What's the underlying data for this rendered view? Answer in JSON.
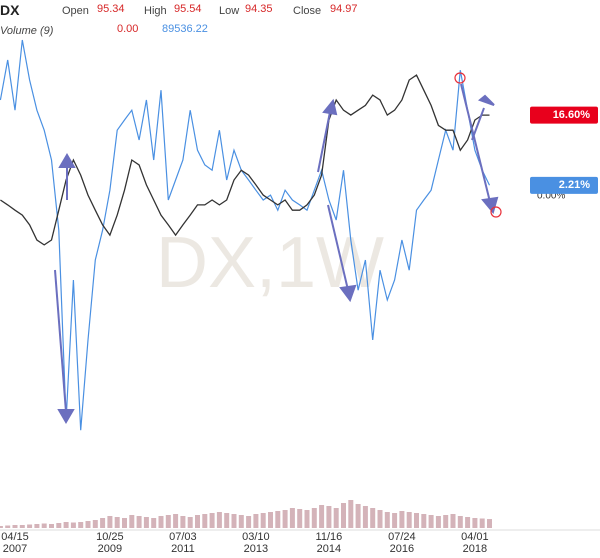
{
  "header": {
    "symbol": "DX",
    "open_label": "Open",
    "open": "95.34",
    "high_label": "High",
    "high": "95.54",
    "low_label": "Low",
    "low": "94.35",
    "close_label": "Close",
    "close": "94.97",
    "volume_label": "Volume (9)",
    "volume_a": "0.00",
    "volume_b": "89536.22"
  },
  "chart_data": {
    "type": "line",
    "watermark": "DX,1W",
    "categories": [
      null,
      null,
      "04/15\n2007",
      null,
      null,
      null,
      null,
      null,
      null,
      null,
      null,
      null,
      null,
      null,
      null,
      "10/25\n2009",
      null,
      null,
      null,
      null,
      null,
      null,
      null,
      null,
      null,
      "07/03\n2011",
      null,
      null,
      null,
      null,
      null,
      null,
      null,
      null,
      null,
      "03/10\n2013",
      null,
      null,
      null,
      null,
      null,
      null,
      null,
      null,
      null,
      "11/16\n2014",
      null,
      null,
      null,
      null,
      null,
      null,
      null,
      null,
      null,
      "07/24\n2016",
      null,
      null,
      null,
      null,
      null,
      null,
      null,
      null,
      null,
      "04/01\n2018",
      null,
      null
    ],
    "ylim": [
      -58.2,
      40.2
    ],
    "yticks": [
      {
        "value": 0,
        "label": "0.00%"
      }
    ],
    "series": [
      {
        "name": "DX",
        "color": "#333333",
        "last_label": {
          "value": 16.6,
          "label": "16.60%",
          "color": "#e8001c"
        },
        "values": [
          -0.8,
          -1.8,
          -2.9,
          -3.9,
          -5.9,
          -9.0,
          -10.0,
          -9.0,
          -2.9,
          3.3,
          7.4,
          4.3,
          0.2,
          -2.9,
          -5.9,
          -8.0,
          -3.9,
          1.2,
          7.4,
          6.4,
          2.3,
          -0.8,
          -3.9,
          -5.9,
          -8.0,
          -5.9,
          -3.9,
          -1.8,
          -1.8,
          -0.8,
          -1.8,
          -0.8,
          3.3,
          5.3,
          4.3,
          2.3,
          0.2,
          -0.8,
          -1.8,
          -0.8,
          -2.9,
          -2.9,
          -1.8,
          0.2,
          4.3,
          15.6,
          19.7,
          17.6,
          16.6,
          17.6,
          18.6,
          20.7,
          19.7,
          16.6,
          17.6,
          19.7,
          23.8,
          24.8,
          21.7,
          18.6,
          14.5,
          13.5,
          13.5,
          9.4,
          11.5,
          15.6,
          16.6,
          16.6
        ]
      },
      {
        "color": "#4a90e2",
        "last_label": {
          "value": 2.21,
          "label": "2.21%",
          "color": "#4a90e2"
        },
        "values": [
          19.7,
          27.9,
          17.6,
          32.0,
          23.8,
          17.6,
          13.5,
          7.4,
          -7.0,
          -45.9,
          -17.2,
          -48.0,
          -29.5,
          -13.1,
          -7.0,
          1.2,
          13.5,
          15.6,
          17.6,
          11.5,
          19.7,
          7.4,
          21.7,
          -0.8,
          3.3,
          7.4,
          17.6,
          9.4,
          6.4,
          5.3,
          13.5,
          3.3,
          9.4,
          5.3,
          3.3,
          1.2,
          -0.8,
          0.2,
          -2.9,
          1.2,
          -0.8,
          -1.8,
          -2.9,
          1.2,
          5.3,
          -0.8,
          -4.9,
          5.3,
          -9.0,
          -19.3,
          -13.1,
          -29.5,
          -15.2,
          -21.3,
          -17.2,
          -9.0,
          -15.2,
          -2.9,
          -0.8,
          1.2,
          7.4,
          13.5,
          9.4,
          25.8,
          17.6,
          9.4,
          5.3,
          2.21
        ]
      }
    ],
    "volume": {
      "color": "#c9a0a8",
      "vlim": [
        0,
        400000
      ],
      "values": [
        20000,
        25000,
        30000,
        30000,
        35000,
        40000,
        45000,
        40000,
        50000,
        60000,
        55000,
        60000,
        70000,
        80000,
        100000,
        120000,
        110000,
        100000,
        130000,
        120000,
        110000,
        100000,
        120000,
        130000,
        140000,
        120000,
        110000,
        130000,
        140000,
        150000,
        160000,
        150000,
        140000,
        130000,
        120000,
        140000,
        150000,
        160000,
        170000,
        180000,
        200000,
        190000,
        180000,
        200000,
        230000,
        220000,
        200000,
        250000,
        280000,
        240000,
        220000,
        200000,
        180000,
        160000,
        150000,
        170000,
        160000,
        150000,
        140000,
        130000,
        120000,
        130000,
        140000,
        120000,
        110000,
        100000,
        95000,
        89536
      ]
    }
  }
}
